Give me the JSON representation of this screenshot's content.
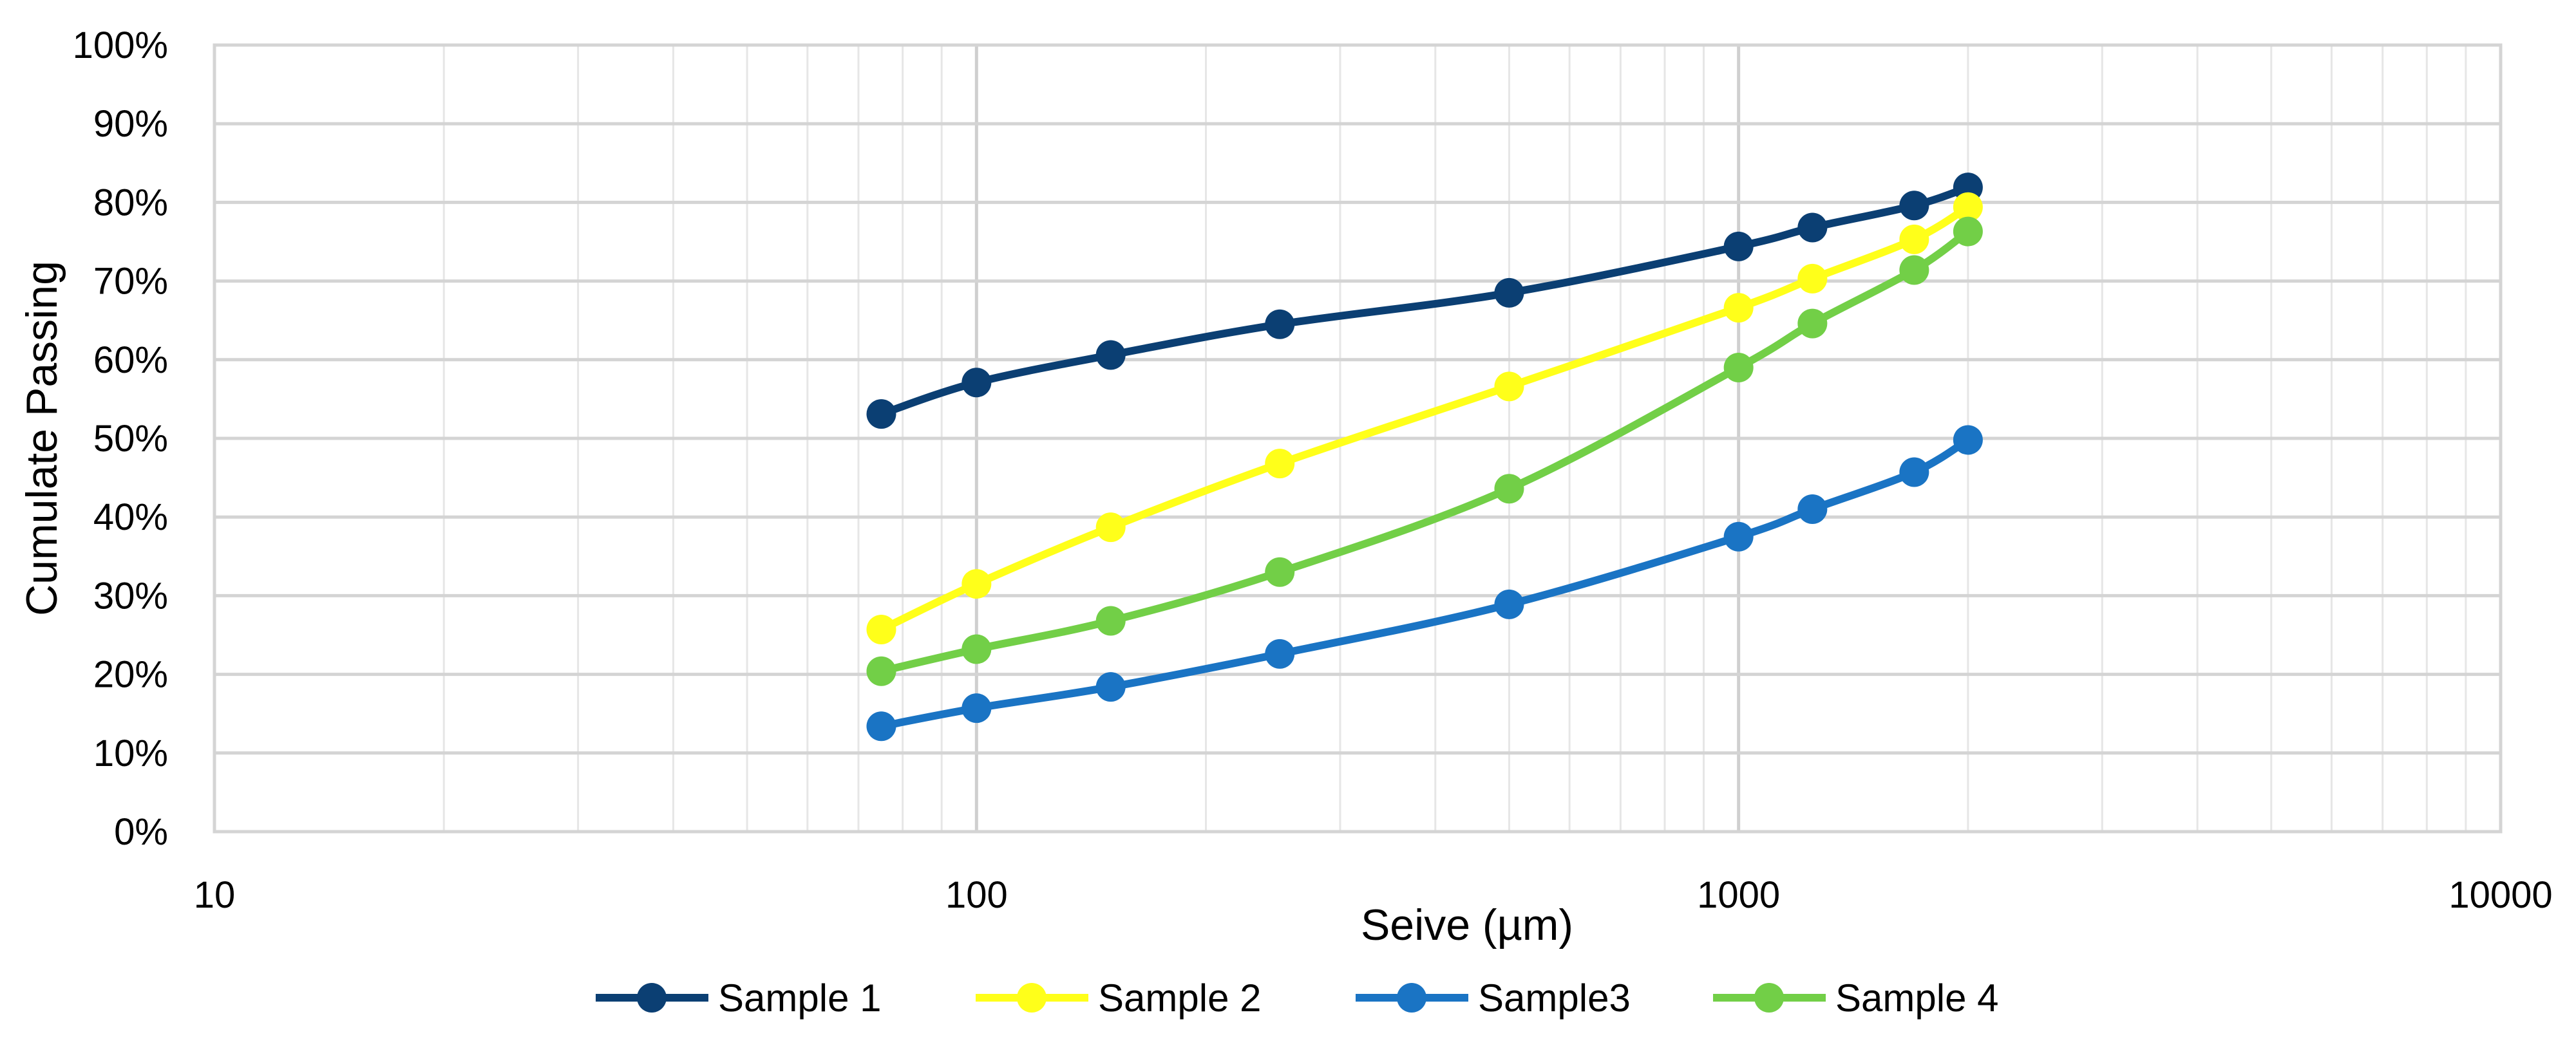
{
  "chart_data": {
    "type": "line",
    "title": "",
    "xlabel": "Seive (µm)",
    "ylabel": "Cumulate Passing",
    "xscale": "log",
    "xlim": [
      10,
      10000
    ],
    "ylim": [
      0,
      100
    ],
    "x_ticks": [
      10,
      100,
      1000,
      10000
    ],
    "x_tick_labels": [
      "10",
      "100",
      "1000",
      "10000"
    ],
    "y_ticks": [
      0,
      10,
      20,
      30,
      40,
      50,
      60,
      70,
      80,
      90,
      100
    ],
    "y_tick_labels": [
      "0%",
      "10%",
      "20%",
      "30%",
      "40%",
      "50%",
      "60%",
      "70%",
      "80%",
      "90%",
      "100%"
    ],
    "grid": true,
    "legend_position": "bottom",
    "x": [
      75,
      100,
      150,
      250,
      500,
      1000,
      1250,
      1700,
      2000
    ],
    "series": [
      {
        "name": "Sample 1",
        "color": "#0b3f73",
        "values": [
          53.1,
          57.1,
          60.6,
          64.5,
          68.5,
          74.4,
          76.8,
          79.6,
          81.9
        ]
      },
      {
        "name": "Sample 2",
        "color": "#ffff1a",
        "values": [
          25.7,
          31.5,
          38.7,
          46.8,
          56.6,
          66.6,
          70.3,
          75.3,
          79.4
        ]
      },
      {
        "name": "Sample3",
        "color": "#1a74c4",
        "values": [
          13.4,
          15.7,
          18.4,
          22.6,
          28.9,
          37.5,
          41.0,
          45.7,
          49.8
        ]
      },
      {
        "name": "Sample 4",
        "color": "#72cf47",
        "values": [
          20.4,
          23.2,
          26.8,
          33.0,
          43.6,
          59.0,
          64.6,
          71.4,
          76.3
        ]
      }
    ]
  }
}
